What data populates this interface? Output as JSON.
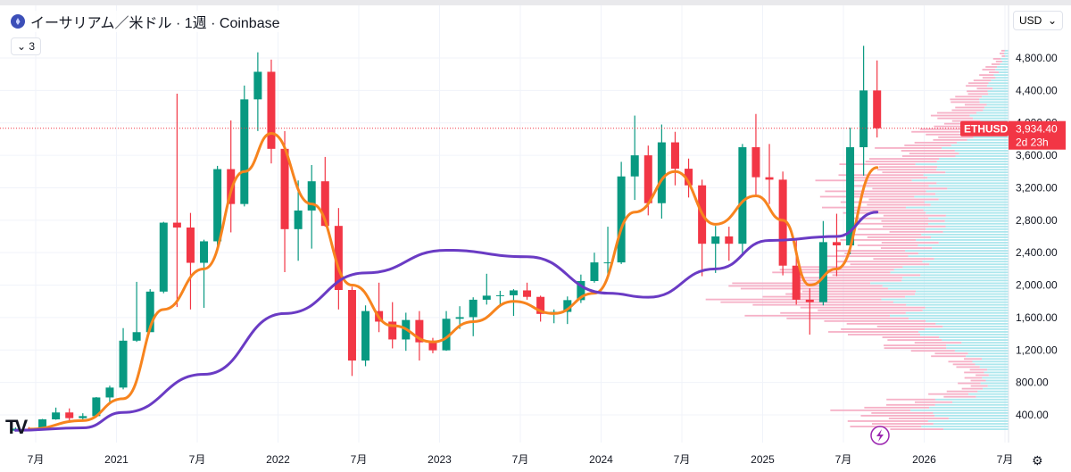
{
  "header": {
    "title": "イーサリアム／米ドル · 1週 · Coinbase",
    "indicator_count": "3",
    "currency": "USD"
  },
  "price_label": {
    "symbol": "ETHUSD",
    "price": "3,934.40",
    "countdown": "2d 23h"
  },
  "colors": {
    "up": "#089981",
    "down": "#f23645",
    "ma_short": "#f7841e",
    "ma_long": "#6a3bc4",
    "profile_up": "#9fe3ea",
    "profile_down": "#f5a3bd"
  },
  "chart_data": {
    "type": "candlestick",
    "title": "イーサリアム／米ドル · 1週 · Coinbase",
    "ylim": [
      200,
      5000
    ],
    "y_ticks": [
      400,
      800,
      1200,
      1600,
      2000,
      2400,
      2800,
      3200,
      3600,
      4000,
      4400,
      4800
    ],
    "y_tick_labels": [
      "400.00",
      "800.00",
      "1,200.00",
      "1,600.00",
      "2,000.00",
      "2,400.00",
      "2,800.00",
      "3,200.00",
      "3,600.00",
      "4,000.00",
      "4,400.00",
      "4,800.00"
    ],
    "x_ticks": [
      {
        "date": "2020-07",
        "label": "7月"
      },
      {
        "date": "2021-01",
        "label": "2021"
      },
      {
        "date": "2021-07",
        "label": "7月"
      },
      {
        "date": "2022-01",
        "label": "2022"
      },
      {
        "date": "2022-07",
        "label": "7月"
      },
      {
        "date": "2023-01",
        "label": "2023"
      },
      {
        "date": "2023-07",
        "label": "7月"
      },
      {
        "date": "2024-01",
        "label": "2024"
      },
      {
        "date": "2024-07",
        "label": "7月"
      },
      {
        "date": "2025-01",
        "label": "2025"
      },
      {
        "date": "2025-07",
        "label": "7月"
      },
      {
        "date": "2026-01",
        "label": "2026"
      },
      {
        "date": "2026-07",
        "label": "7月"
      }
    ],
    "last_price": 3934.4,
    "candles": [
      [
        "2020-05",
        205,
        245,
        195,
        230
      ],
      [
        "2020-06",
        230,
        250,
        215,
        225
      ],
      [
        "2020-07",
        225,
        350,
        220,
        345
      ],
      [
        "2020-08",
        345,
        490,
        340,
        430
      ],
      [
        "2020-09",
        430,
        480,
        310,
        360
      ],
      [
        "2020-10",
        360,
        420,
        340,
        385
      ],
      [
        "2020-11",
        385,
        620,
        380,
        615
      ],
      [
        "2020-12",
        615,
        760,
        540,
        737
      ],
      [
        "2021-01",
        737,
        1470,
        715,
        1315
      ],
      [
        "2021-02",
        1315,
        2040,
        1300,
        1420
      ],
      [
        "2021-03",
        1420,
        1950,
        1450,
        1920
      ],
      [
        "2021-04",
        1920,
        2780,
        1900,
        2770
      ],
      [
        "2021-05",
        2770,
        4360,
        1730,
        2710
      ],
      [
        "2021-06",
        2710,
        2890,
        1700,
        2275
      ],
      [
        "2021-07",
        2275,
        2560,
        1720,
        2540
      ],
      [
        "2021-08",
        2540,
        3470,
        2450,
        3430
      ],
      [
        "2021-09",
        3430,
        4030,
        2650,
        3000
      ],
      [
        "2021-10",
        3000,
        4460,
        2970,
        4290
      ],
      [
        "2021-11",
        4290,
        4870,
        3900,
        4630
      ],
      [
        "2021-12",
        4630,
        4780,
        3500,
        3680
      ],
      [
        "2022-01",
        3680,
        3900,
        2160,
        2690
      ],
      [
        "2022-02",
        2690,
        3290,
        2300,
        2920
      ],
      [
        "2022-03",
        2920,
        3480,
        2450,
        3280
      ],
      [
        "2022-04",
        3280,
        3580,
        2720,
        2730
      ],
      [
        "2022-05",
        2730,
        2950,
        1700,
        1940
      ],
      [
        "2022-06",
        1940,
        1980,
        880,
        1070
      ],
      [
        "2022-07",
        1070,
        1750,
        1000,
        1680
      ],
      [
        "2022-08",
        1680,
        2030,
        1420,
        1550
      ],
      [
        "2022-09",
        1550,
        1790,
        1220,
        1330
      ],
      [
        "2022-10",
        1330,
        1660,
        1190,
        1570
      ],
      [
        "2022-11",
        1570,
        1680,
        1070,
        1295
      ],
      [
        "2022-12",
        1295,
        1350,
        1160,
        1196
      ],
      [
        "2023-01",
        1196,
        1680,
        1190,
        1585
      ],
      [
        "2023-02",
        1585,
        1740,
        1460,
        1605
      ],
      [
        "2023-03",
        1605,
        1850,
        1370,
        1820
      ],
      [
        "2023-04",
        1820,
        2140,
        1760,
        1870
      ],
      [
        "2023-05",
        1870,
        1930,
        1750,
        1875
      ],
      [
        "2023-06",
        1875,
        1950,
        1620,
        1935
      ],
      [
        "2023-07",
        1935,
        2030,
        1820,
        1855
      ],
      [
        "2023-08",
        1855,
        1870,
        1550,
        1645
      ],
      [
        "2023-09",
        1645,
        1700,
        1530,
        1670
      ],
      [
        "2023-10",
        1670,
        1860,
        1520,
        1815
      ],
      [
        "2023-11",
        1815,
        2130,
        1780,
        2050
      ],
      [
        "2023-12",
        2050,
        2400,
        2030,
        2280
      ],
      [
        "2024-01",
        2280,
        2720,
        2100,
        2280
      ],
      [
        "2024-02",
        2280,
        3520,
        2260,
        3340
      ],
      [
        "2024-03",
        3340,
        4090,
        3050,
        3600
      ],
      [
        "2024-04",
        3600,
        3720,
        2860,
        3010
      ],
      [
        "2024-05",
        3010,
        3980,
        2820,
        3760
      ],
      [
        "2024-06",
        3760,
        3890,
        3230,
        3435
      ],
      [
        "2024-07",
        3435,
        3560,
        3080,
        3230
      ],
      [
        "2024-08",
        3230,
        3300,
        2110,
        2510
      ],
      [
        "2024-09",
        2510,
        2730,
        2150,
        2600
      ],
      [
        "2024-10",
        2600,
        2720,
        2300,
        2510
      ],
      [
        "2024-11",
        2510,
        3740,
        2360,
        3700
      ],
      [
        "2024-12",
        3700,
        4110,
        3100,
        3330
      ],
      [
        "2025-01",
        3330,
        3740,
        3000,
        3300
      ],
      [
        "2025-02",
        3300,
        3400,
        2120,
        2240
      ],
      [
        "2025-03",
        2240,
        2550,
        1760,
        1820
      ],
      [
        "2025-04",
        1820,
        1960,
        1390,
        1790
      ],
      [
        "2025-05",
        1790,
        2790,
        1750,
        2530
      ],
      [
        "2025-06",
        2530,
        2880,
        2110,
        2490
      ],
      [
        "2025-07",
        2490,
        3940,
        2380,
        3700
      ],
      [
        "2025-08",
        3700,
        4950,
        3350,
        4400
      ],
      [
        "2025-09",
        4400,
        4770,
        3820,
        3934
      ]
    ],
    "series": [
      {
        "type": "line",
        "color": "#f7841e",
        "points": [
          [
            "2020-06",
            225
          ],
          [
            "2020-10",
            330
          ],
          [
            "2021-01",
            600
          ],
          [
            "2021-04",
            1700
          ],
          [
            "2021-07",
            2200
          ],
          [
            "2021-10",
            3400
          ],
          [
            "2021-12",
            3870
          ],
          [
            "2022-03",
            3000
          ],
          [
            "2022-06",
            2000
          ],
          [
            "2022-09",
            1500
          ],
          [
            "2022-12",
            1300
          ],
          [
            "2023-03",
            1550
          ],
          [
            "2023-06",
            1800
          ],
          [
            "2023-09",
            1650
          ],
          [
            "2023-12",
            1900
          ],
          [
            "2024-03",
            2900
          ],
          [
            "2024-06",
            3400
          ],
          [
            "2024-09",
            2750
          ],
          [
            "2024-12",
            3100
          ],
          [
            "2025-02",
            2800
          ],
          [
            "2025-04",
            2000
          ],
          [
            "2025-06",
            2200
          ],
          [
            "2025-09",
            3450
          ]
        ]
      },
      {
        "type": "line",
        "color": "#6a3bc4",
        "points": [
          [
            "2020-05",
            210
          ],
          [
            "2020-10",
            240
          ],
          [
            "2021-01",
            430
          ],
          [
            "2021-07",
            900
          ],
          [
            "2022-01",
            1650
          ],
          [
            "2022-07",
            2150
          ],
          [
            "2023-01",
            2430
          ],
          [
            "2023-07",
            2350
          ],
          [
            "2024-01",
            1900
          ],
          [
            "2024-04",
            1850
          ],
          [
            "2024-09",
            2200
          ],
          [
            "2025-01",
            2550
          ],
          [
            "2025-06",
            2600
          ],
          [
            "2025-09",
            2900
          ]
        ]
      }
    ],
    "volume_profile": {
      "price_step": 100,
      "start_price": 200,
      "total": [
        180,
        190,
        200,
        150,
        90,
        60,
        50,
        60,
        70,
        110,
        150,
        180,
        210,
        250,
        300,
        330,
        340,
        330,
        310,
        280,
        240,
        210,
        200,
        190,
        190,
        180,
        200,
        210,
        220,
        210,
        220,
        200,
        190,
        170,
        150,
        120,
        110,
        100,
        90,
        80,
        70,
        60,
        50,
        40,
        30,
        20,
        10
      ],
      "up_share": [
        0.55,
        0.5,
        0.55,
        0.6,
        0.5,
        0.55,
        0.6,
        0.55,
        0.6,
        0.55,
        0.5,
        0.55,
        0.5,
        0.45,
        0.45,
        0.4,
        0.42,
        0.45,
        0.5,
        0.5,
        0.5,
        0.55,
        0.6,
        0.55,
        0.55,
        0.5,
        0.5,
        0.55,
        0.5,
        0.45,
        0.5,
        0.5,
        0.55,
        0.5,
        0.5,
        0.55,
        0.5,
        0.5,
        0.5,
        0.45,
        0.5,
        0.5,
        0.5,
        0.5,
        0.5,
        0.5,
        0.5
      ]
    }
  }
}
